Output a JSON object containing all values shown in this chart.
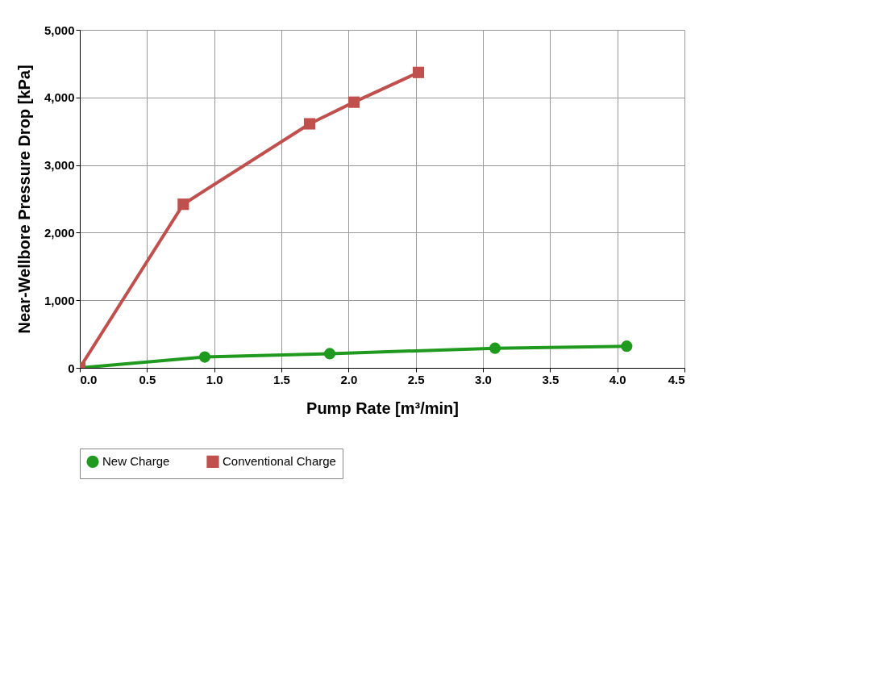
{
  "chart_data": {
    "type": "line",
    "xlabel": "Pump Rate [m³/min]",
    "ylabel": "Near-Wellbore Pressure Drop [kPa]",
    "xlim": [
      0,
      4.5
    ],
    "xticks": [
      {
        "value": 0,
        "label": "0.0"
      },
      0.5,
      {
        "value": 1,
        "label": "1.0"
      },
      1.5,
      {
        "value": 2,
        "label": "2.0"
      },
      2.5,
      {
        "value": 3,
        "label": "3.0"
      },
      3.5,
      {
        "value": 4,
        "label": "4.0"
      },
      4.5
    ],
    "ylim": [
      0,
      5000
    ],
    "yticks": [
      0,
      {
        "value": 1000,
        "label": "1,000"
      },
      {
        "value": 2000,
        "label": "2,000"
      },
      {
        "value": 3000,
        "label": "3,000"
      },
      {
        "value": 4000,
        "label": "4,000"
      },
      {
        "value": 5000,
        "label": "5,000"
      }
    ],
    "grid": true,
    "legend": "bottom",
    "series": [
      {
        "name": "New Charge",
        "color": "#1f9a1f",
        "marker": "circle",
        "x": [
          0,
          0.93,
          1.86,
          3.09,
          4.07
        ],
        "values": [
          0,
          160,
          210,
          290,
          320
        ]
      },
      {
        "name": "Conventional Charge",
        "color": "#c0504d",
        "marker": "square",
        "x": [
          0,
          0.77,
          1.71,
          2.04,
          2.52
        ],
        "values": [
          0,
          2420,
          3610,
          3930,
          4370
        ]
      }
    ]
  }
}
